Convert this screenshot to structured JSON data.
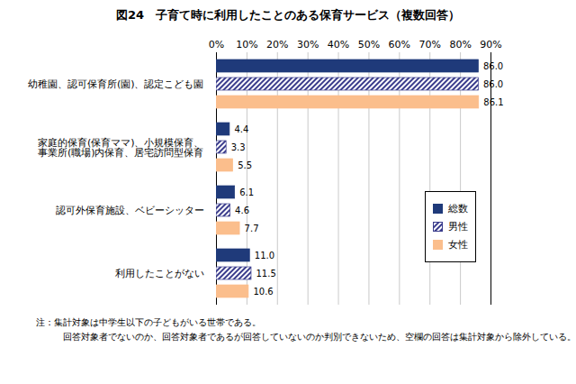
{
  "chart_data": {
    "type": "bar",
    "orientation": "horizontal",
    "title": "図24　子育て時に利用したことのある保育サービス（複数回答）",
    "categories": [
      "幼稚園、認可保育所(園)、認定こども園",
      "家庭的保育(保育ママ)、小規模保育、\n事業所(職場)内保育、居宅訪問型保育",
      "認可外保育施設、ベビーシッター",
      "利用したことがない"
    ],
    "series": [
      {
        "name": "総数",
        "color": "#1F3A7A",
        "values": [
          86.0,
          4.4,
          6.1,
          11.0
        ],
        "value_labels": [
          "86.0",
          "4.4",
          "6.1",
          "11.0"
        ]
      },
      {
        "name": "男性",
        "color": "#3A3C8C",
        "values": [
          86.0,
          3.3,
          4.6,
          11.5
        ],
        "value_labels": [
          "86.0",
          "3.3",
          "4.6",
          "11.5"
        ]
      },
      {
        "name": "女性",
        "color": "#FBBE8C",
        "values": [
          86.1,
          5.5,
          7.7,
          10.6
        ],
        "value_labels": [
          "86.1",
          "5.5",
          "7.7",
          "10.6"
        ]
      }
    ],
    "xlim": [
      0,
      90
    ],
    "xticks": [
      {
        "value": 0,
        "label": "0%"
      },
      {
        "value": 10,
        "label": "10%"
      },
      {
        "value": 20,
        "label": "20%"
      },
      {
        "value": 30,
        "label": "30%"
      },
      {
        "value": 40,
        "label": "40%"
      },
      {
        "value": 50,
        "label": "50%"
      },
      {
        "value": 60,
        "label": "60%"
      },
      {
        "value": 70,
        "label": "70%"
      },
      {
        "value": 80,
        "label": "80%"
      },
      {
        "value": 90,
        "label": "90%"
      }
    ],
    "grid": true,
    "legend": "right",
    "data_labels": true,
    "notes": [
      "注：集計対象は中学生以下の子どもがいる世帯である。",
      "回答対象者でないのか、回答対象者であるが回答していないのか判別できないため、空欄の回答は集計対象から除外している。"
    ]
  }
}
